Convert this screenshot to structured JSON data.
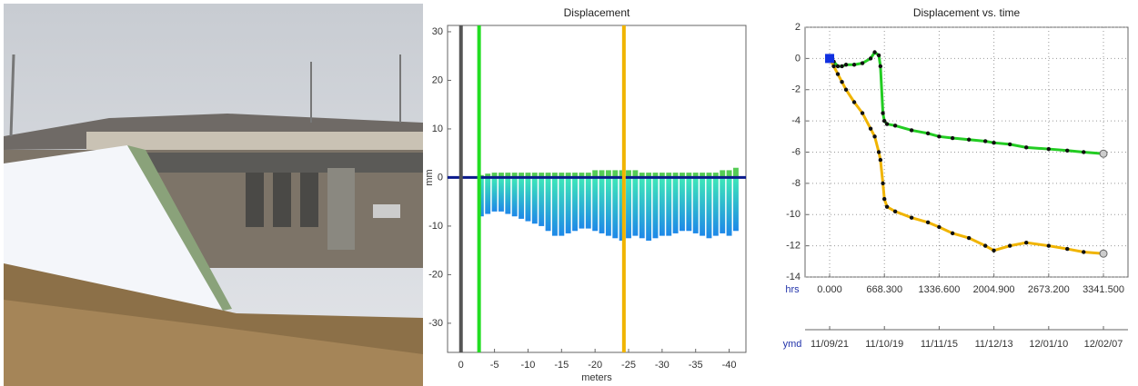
{
  "chart_data": [
    {
      "type": "bar",
      "title": "Displacement",
      "xlabel": "meters",
      "ylabel": "mm",
      "x": [
        -3,
        -4,
        -5,
        -6,
        -7,
        -8,
        -9,
        -10,
        -11,
        -12,
        -13,
        -14,
        -15,
        -16,
        -17,
        -18,
        -19,
        -20,
        -21,
        -22,
        -23,
        -24,
        -25,
        -26,
        -27,
        -28,
        -29,
        -30,
        -31,
        -32,
        -33,
        -34,
        -35,
        -36,
        -37,
        -38,
        -39,
        -40,
        -41
      ],
      "series": [
        {
          "color": [
            "#3ee8b8",
            "#1e88e8"
          ],
          "values": [
            -8,
            -7.5,
            -7,
            -7,
            -7.5,
            -8,
            -8.5,
            -9,
            -9.5,
            -10,
            -11,
            -12,
            -12,
            -11.5,
            -11,
            -10.5,
            -10.5,
            -11,
            -11.5,
            -12,
            -12.5,
            -13,
            -12.5,
            -12,
            -12.5,
            -13,
            -12.5,
            -12,
            -12,
            -11.5,
            -11,
            -11,
            -11.5,
            -12,
            -12.5,
            -12,
            -11.5,
            -12,
            -11
          ]
        },
        {
          "color": "#55cc55",
          "values": [
            0.5,
            0.8,
            1,
            1,
            1,
            1,
            1,
            1,
            1,
            1,
            1,
            1,
            1,
            1,
            1,
            1,
            1,
            1.5,
            1.5,
            1.5,
            1.5,
            1.5,
            1.5,
            1.5,
            1,
            1,
            1,
            1,
            1,
            1,
            1,
            1,
            1,
            1,
            1,
            1,
            1.5,
            1.5,
            2
          ]
        }
      ],
      "markers": [
        {
          "x": 0,
          "color": "#555555"
        },
        {
          "x": -2.7,
          "color": "#22dd22"
        },
        {
          "x": -24.3,
          "color": "#f0b400"
        }
      ],
      "baseline_color": "#0a1a8c",
      "xlim": [
        2,
        -42.5
      ],
      "xticks": [
        0,
        -5,
        -10,
        -15,
        -20,
        -25,
        -30,
        -35,
        -40
      ],
      "ylim": [
        -36,
        31.3
      ],
      "yticks": [
        30,
        20,
        10,
        0,
        -10,
        -20,
        -30
      ],
      "grid": false
    },
    {
      "type": "line",
      "title": "Displacement vs. time",
      "xlabel": "hrs",
      "x2label": "ymd",
      "x": [
        0,
        50,
        100,
        150,
        200,
        300,
        400,
        500,
        550,
        600,
        620,
        650,
        668,
        700,
        800,
        1000,
        1200,
        1336,
        1500,
        1700,
        1900,
        2004,
        2200,
        2400,
        2673,
        2900,
        3100,
        3341.5
      ],
      "series": [
        {
          "color": "#22cc22",
          "values": [
            0,
            -0.2,
            -0.5,
            -0.5,
            -0.4,
            -0.4,
            -0.3,
            0,
            0.4,
            0.2,
            -0.5,
            -3.5,
            -4,
            -4.2,
            -4.3,
            -4.6,
            -4.8,
            -5,
            -5.1,
            -5.2,
            -5.3,
            -5.4,
            -5.5,
            -5.7,
            -5.8,
            -5.9,
            -6,
            -6.1
          ]
        },
        {
          "color": "#f0b400",
          "values": [
            0,
            -0.5,
            -1,
            -1.5,
            -2,
            -2.8,
            -3.5,
            -4.5,
            -5,
            -6,
            -6.5,
            -8,
            -9,
            -9.5,
            -9.8,
            -10.2,
            -10.5,
            -10.8,
            -11.2,
            -11.5,
            -12,
            -12.3,
            -12,
            -11.8,
            -12,
            -12.2,
            -12.4,
            -12.5
          ]
        }
      ],
      "xlim": [
        -300,
        3641
      ],
      "xticks": [
        {
          "value": 0,
          "label": "0.000"
        },
        {
          "value": 668.3,
          "label": "668.300"
        },
        {
          "value": 1336.6,
          "label": "1336.600"
        },
        {
          "value": 2004.9,
          "label": "2004.900"
        },
        {
          "value": 2673.2,
          "label": "2673.200"
        },
        {
          "value": 3341.5,
          "label": "3341.500"
        }
      ],
      "x2ticks": [
        {
          "value": 0,
          "label": "11/09/21"
        },
        {
          "value": 668.3,
          "label": "11/10/19"
        },
        {
          "value": 1336.6,
          "label": "11/11/15"
        },
        {
          "value": 2004.9,
          "label": "11/12/13"
        },
        {
          "value": 2673.2,
          "label": "12/01/10"
        },
        {
          "value": 3341.5,
          "label": "12/02/07"
        }
      ],
      "ylim": [
        -14,
        2
      ],
      "yticks": [
        2,
        0,
        -2,
        -4,
        -6,
        -8,
        -10,
        -12,
        -14
      ],
      "grid": true
    }
  ]
}
